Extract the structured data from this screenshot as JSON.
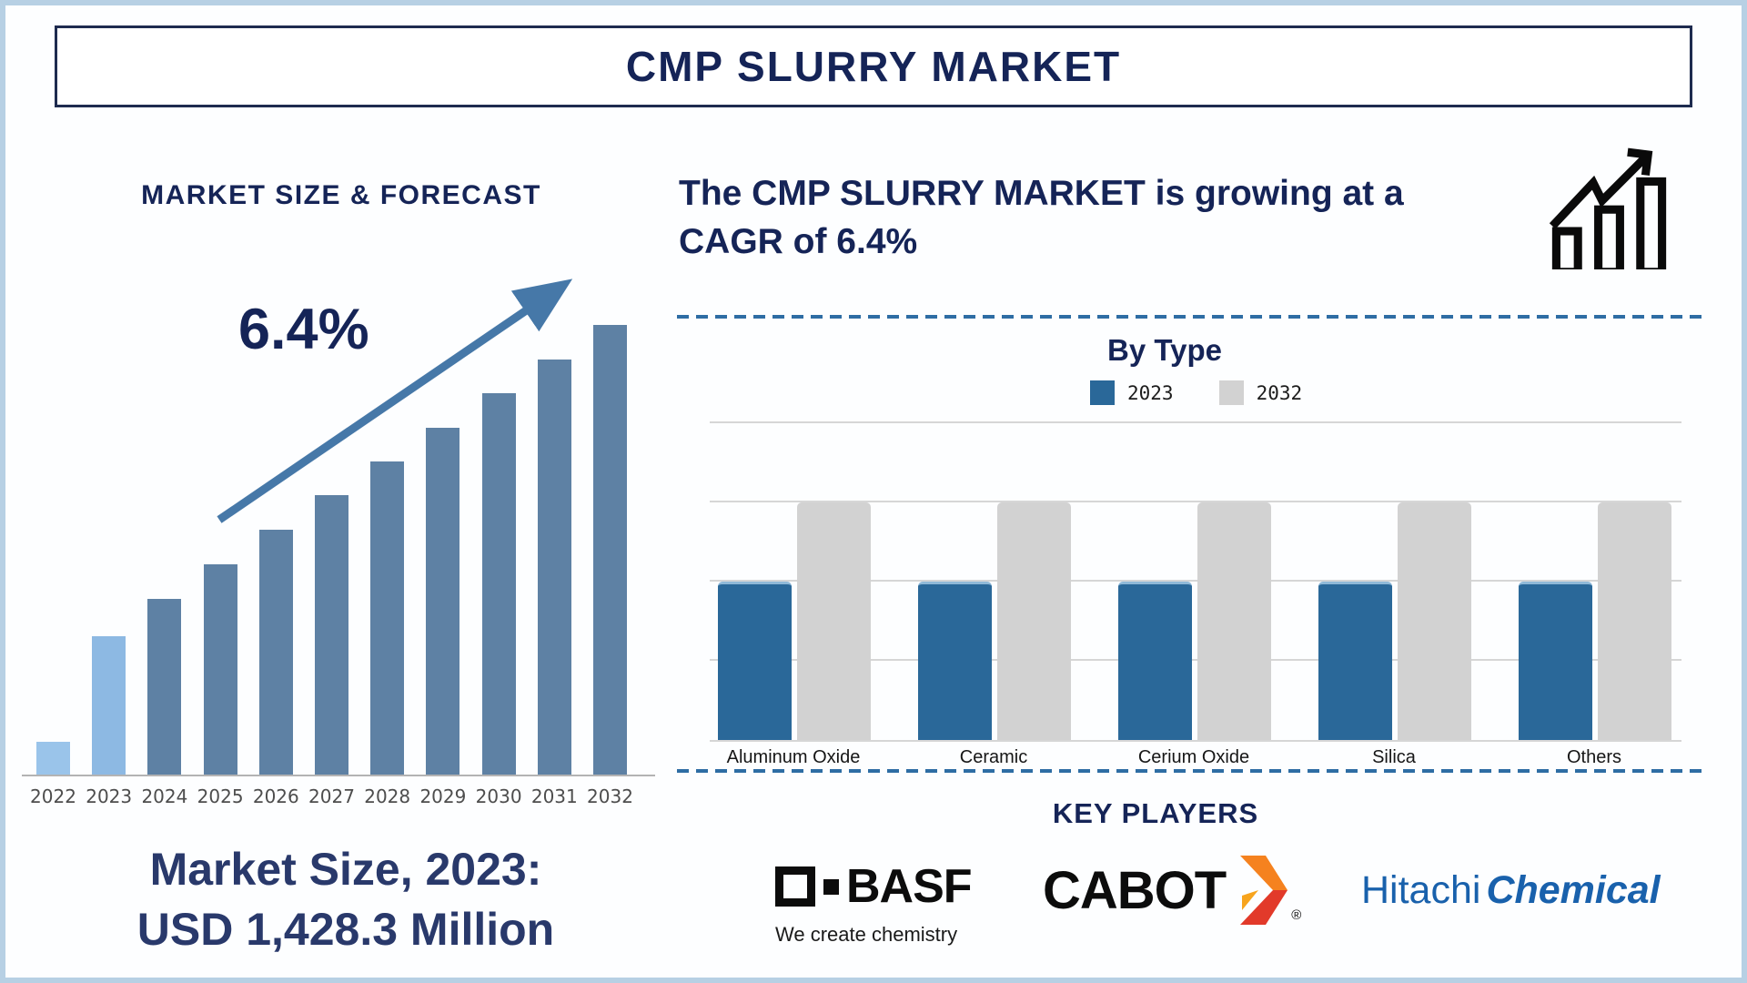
{
  "banner": {
    "title": "CMP SLURRY MARKET"
  },
  "left_section": {
    "heading": "MARKET SIZE & FORECAST",
    "cagr_label": "6.4%",
    "market_size_line1": "Market Size, 2023:",
    "market_size_line2": "USD 1,428.3 Million"
  },
  "right_section": {
    "growth_text_line1": "The CMP SLURRY MARKET is growing at a",
    "growth_text_line2": "CAGR of 6.4%",
    "by_type_title": "By Type",
    "legend": [
      {
        "label": "2023",
        "color": "#2a6899"
      },
      {
        "label": "2032",
        "color": "#d2d2d2"
      }
    ],
    "key_players_heading": "KEY PLAYERS",
    "players": [
      {
        "name": "BASF",
        "tagline": "We create chemistry"
      },
      {
        "name": "CABOT",
        "registered_mark": "®"
      },
      {
        "name": "Hitachi Chemical",
        "part1": "Hitachi",
        "part2": "Chemical"
      }
    ]
  },
  "colors": {
    "navy_text": "#152457",
    "forecast_bar_steel": "#5e81a4",
    "forecast_bar_light": "#8db9e3",
    "trend_arrow": "#4678a8",
    "bytype_blue": "#2a6899",
    "bytype_gray": "#d2d2d2",
    "gridline": "#d6d6d6",
    "dashed_separator": "#2e6da4",
    "hitachi_blue": "#1961ac",
    "cabot_orange": "#f5821f",
    "cabot_red": "#e23a2a",
    "cabot_yellow": "#f7a41d"
  },
  "chart_data": [
    {
      "type": "bar",
      "title": "MARKET SIZE & FORECAST",
      "categories": [
        "2022",
        "2023",
        "2024",
        "2025",
        "2026",
        "2027",
        "2028",
        "2029",
        "2030",
        "2031",
        "2032"
      ],
      "values_pct_of_max": [
        7.3,
        30.8,
        39.1,
        46.8,
        54.5,
        62.1,
        69.6,
        77.1,
        84.8,
        92.3,
        100
      ],
      "bar_colors": [
        "#9ac4ea",
        "#8db9e3",
        "#5e81a4",
        "#5e81a4",
        "#5e81a4",
        "#5e81a4",
        "#5e81a4",
        "#5e81a4",
        "#5e81a4",
        "#5e81a4",
        "#5e81a4"
      ],
      "annotation": "6.4%",
      "anchor_text": "Market Size, 2023: USD 1,428.3 Million",
      "xlabel": "",
      "ylabel": "",
      "grid": false,
      "y_axis_labels_shown": false
    },
    {
      "type": "bar",
      "title": "By Type",
      "categories": [
        "Aluminum Oxide",
        "Ceramic",
        "Cerium Oxide",
        "Silica",
        "Others"
      ],
      "series": [
        {
          "name": "2023",
          "color": "#2a6899",
          "values": [
            50,
            50,
            50,
            50,
            50
          ]
        },
        {
          "name": "2032",
          "color": "#d2d2d2",
          "values": [
            75,
            75,
            75,
            75,
            75
          ]
        }
      ],
      "ylim": [
        0,
        100
      ],
      "gridline_levels": [
        0,
        25,
        50,
        75,
        100
      ],
      "grid": true,
      "legend_position": "top",
      "y_axis_labels_shown": false
    }
  ]
}
